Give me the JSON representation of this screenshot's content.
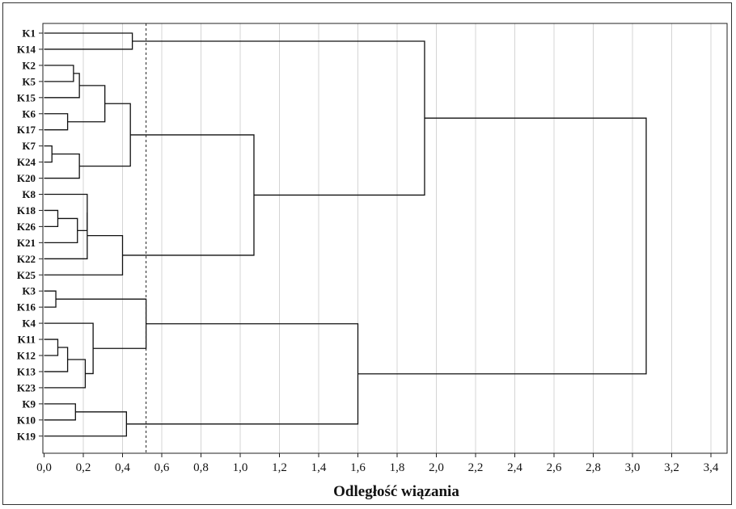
{
  "chart_data": {
    "type": "dendrogram",
    "orientation": "horizontal",
    "xlabel": "Odległość wiązania",
    "xlim": [
      0,
      3.5
    ],
    "x_ticks": [
      0,
      0.2,
      0.4,
      0.6,
      0.8,
      1.0,
      1.2,
      1.4,
      1.6,
      1.8,
      2.0,
      2.2,
      2.4,
      2.6,
      2.8,
      3.0,
      3.2,
      3.4
    ],
    "x_tick_labels": [
      "0,0",
      "0,2",
      "0,4",
      "0,6",
      "0,8",
      "1,0",
      "1,2",
      "1,4",
      "1,6",
      "1,8",
      "2,0",
      "2,2",
      "2,4",
      "2,6",
      "2,8",
      "3,0",
      "3,2",
      "3,4"
    ],
    "grid": true,
    "leaves": [
      "K1",
      "K14",
      "K2",
      "K5",
      "K15",
      "K6",
      "K17",
      "K7",
      "K24",
      "K20",
      "K8",
      "K18",
      "K26",
      "K21",
      "K22",
      "K25",
      "K3",
      "K16",
      "K4",
      "K11",
      "K12",
      "K13",
      "K23",
      "K9",
      "K10",
      "K19"
    ],
    "cut_line": 0.52,
    "merges": [
      {
        "id": "m1",
        "left": "K1",
        "right": "K14",
        "height": 0.45
      },
      {
        "id": "m2",
        "left": "K2",
        "right": "K5",
        "height": 0.15
      },
      {
        "id": "m3",
        "left": "m2",
        "right": "K15",
        "height": 0.18
      },
      {
        "id": "m4",
        "left": "K6",
        "right": "K17",
        "height": 0.12
      },
      {
        "id": "m5",
        "left": "m3",
        "right": "m4",
        "height": 0.31
      },
      {
        "id": "m6",
        "left": "K7",
        "right": "K24",
        "height": 0.04
      },
      {
        "id": "m7",
        "left": "m6",
        "right": "K20",
        "height": 0.18
      },
      {
        "id": "m8",
        "left": "m5",
        "right": "m7",
        "height": 0.44
      },
      {
        "id": "m9",
        "left": "K18",
        "right": "K26",
        "height": 0.07
      },
      {
        "id": "m10",
        "left": "m9",
        "right": "K21",
        "height": 0.17
      },
      {
        "id": "m11",
        "left": "K8",
        "right": "m10",
        "height": 0.22
      },
      {
        "id": "m12",
        "left": "m11",
        "right": "K22",
        "height": 0.22
      },
      {
        "id": "m13",
        "left": "m12",
        "right": "K25",
        "height": 0.4
      },
      {
        "id": "m14",
        "left": "m8",
        "right": "m13",
        "height": 1.07
      },
      {
        "id": "m15",
        "left": "m1",
        "right": "m14",
        "height": 1.94
      },
      {
        "id": "m16",
        "left": "K3",
        "right": "K16",
        "height": 0.06
      },
      {
        "id": "m17",
        "left": "K11",
        "right": "K12",
        "height": 0.07
      },
      {
        "id": "m18",
        "left": "m17",
        "right": "K13",
        "height": 0.12
      },
      {
        "id": "m19",
        "left": "m18",
        "right": "K23",
        "height": 0.21
      },
      {
        "id": "m20",
        "left": "K4",
        "right": "m19",
        "height": 0.25
      },
      {
        "id": "m21",
        "left": "m16",
        "right": "m20",
        "height": 0.52
      },
      {
        "id": "m22",
        "left": "K9",
        "right": "K10",
        "height": 0.16
      },
      {
        "id": "m23",
        "left": "m22",
        "right": "K19",
        "height": 0.42
      },
      {
        "id": "m24",
        "left": "m21",
        "right": "m23",
        "height": 1.6
      },
      {
        "id": "m25",
        "left": "m15",
        "right": "m24",
        "height": 3.07
      }
    ]
  }
}
